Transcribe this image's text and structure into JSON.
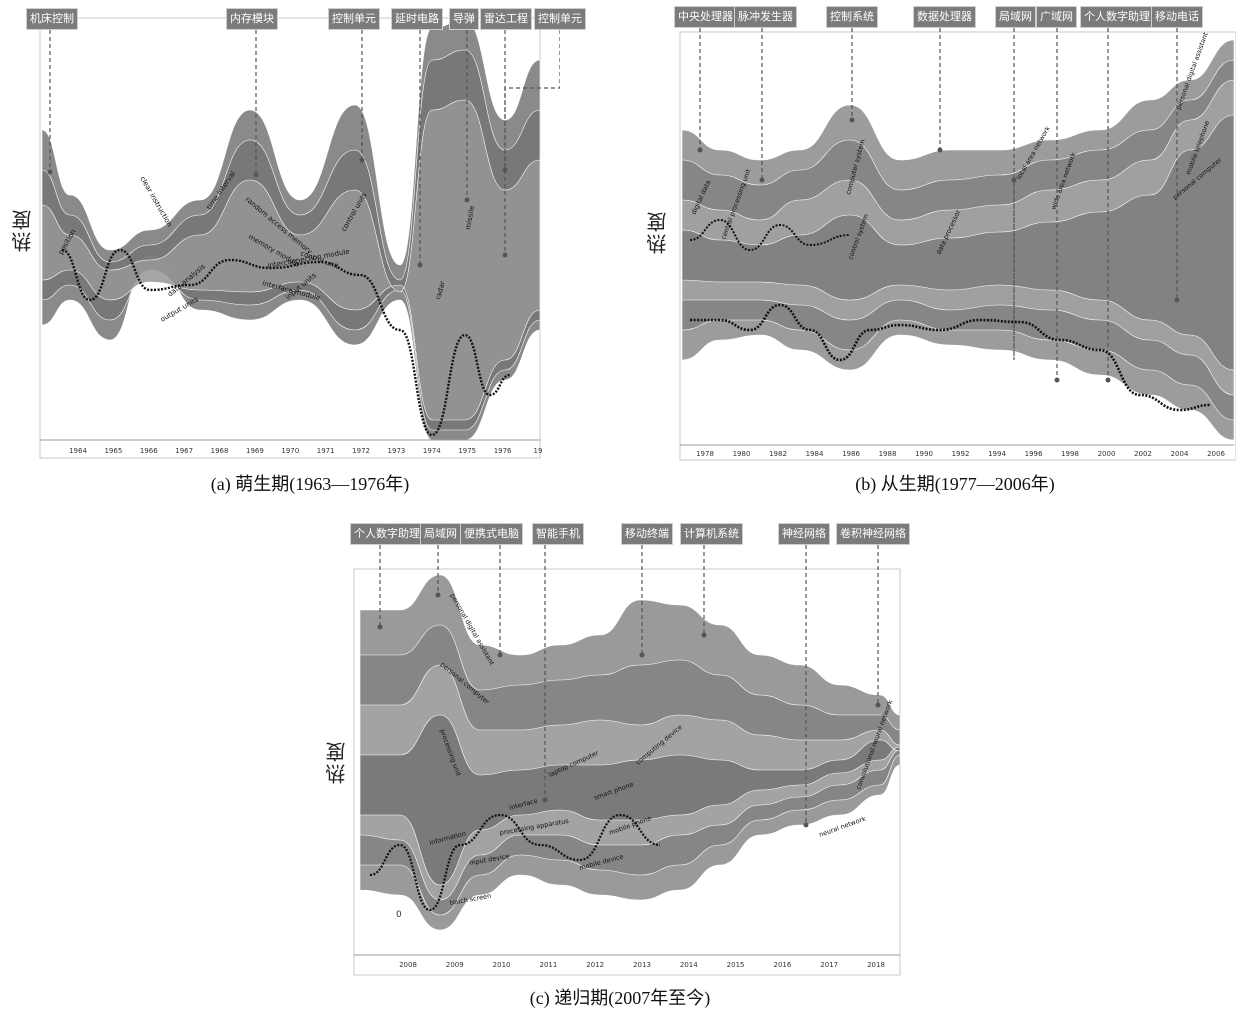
{
  "colors": {
    "stream_dark": "#6f6f6f",
    "stream_mid": "#8c8c8c",
    "stream_light": "#a9a9a9",
    "label_ink": "#111111",
    "tag_bg": "#7b7b7b"
  },
  "chart_data": [
    {
      "type": "area",
      "caption": "(a) 萌生期(1963—1976年)",
      "ylabel": "热度",
      "x_tick_labels": [
        "1964",
        "1965",
        "1966",
        "1967",
        "1968",
        "1969",
        "1970",
        "1971",
        "1972",
        "1973",
        "1974",
        "1975",
        "1976",
        "19"
      ],
      "topics": [
        "机床控制",
        "内存模块",
        "控制单元",
        "延时电路",
        "导弹",
        "雷达工程",
        "控制单元"
      ],
      "stream_labels": [
        "position",
        "data analysis",
        "output units",
        "clear instruction",
        "random access memory",
        "memory module",
        "control unit",
        "interface module",
        "interconnection module",
        "time interval",
        "input units",
        "control units",
        "radar",
        "missile"
      ]
    },
    {
      "type": "area",
      "caption": "(b) 从生期(1977—2006年)",
      "ylabel": "热度",
      "x_tick_labels": [
        "1978",
        "1980",
        "1982",
        "1984",
        "1986",
        "1988",
        "1990",
        "1992",
        "1994",
        "1996",
        "1998",
        "2000",
        "2002",
        "2004",
        "2006"
      ],
      "topics": [
        "中央处理器",
        "脉冲发生器",
        "控制系统",
        "数据处理器",
        "局域网",
        "广域网",
        "个人数字助理",
        "移动电话"
      ],
      "stream_labels": [
        "digital data",
        "central processing unit",
        "computer system",
        "control system",
        "data processor",
        "local area network",
        "wide area network",
        "personal computer",
        "mobile telephone",
        "personal digital assistant"
      ]
    },
    {
      "type": "area",
      "caption": "(c) 递归期(2007年至今)",
      "ylabel": "热度",
      "x_tick_labels": [
        "2008",
        "2009",
        "2010",
        "2011",
        "2012",
        "2013",
        "2014",
        "2015",
        "2016",
        "2017",
        "2018"
      ],
      "topics": [
        "个人数字助理",
        "局域网",
        "便携式电脑",
        "智能手机",
        "移动终端",
        "计算机系统",
        "神经网络",
        "卷积神经网络"
      ],
      "stream_labels": [
        "personal digital assistant",
        "personal computer",
        "processing unit",
        "laptop computer",
        "computing device",
        "smart phone",
        "mobile phone",
        "mobile device",
        "input device",
        "touch screen",
        "processing apparatus",
        "interface",
        "information",
        "neural network",
        "convolutional neural network"
      ],
      "zero_label": "0"
    }
  ]
}
